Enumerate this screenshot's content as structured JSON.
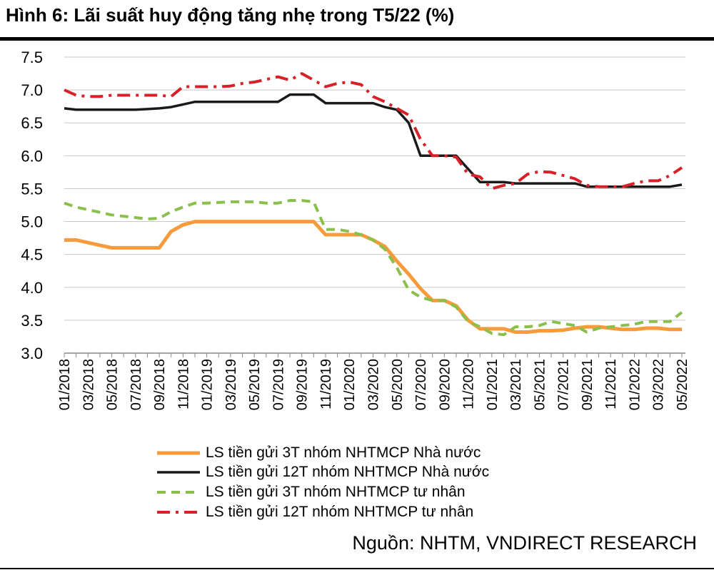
{
  "figure": {
    "title": "Hình 6: Lãi suất huy động tăng nhẹ trong T5/22 (%)",
    "source": "Nguồn: NHTM, VNDIRECT RESEARCH"
  },
  "chart_data": {
    "type": "line",
    "title": "Hình 6: Lãi suất huy động tăng nhẹ trong T5/22 (%)",
    "xlabel": "",
    "ylabel": "",
    "ylim": [
      3.0,
      7.5
    ],
    "yticks": [
      "3.0",
      "3.5",
      "4.0",
      "4.5",
      "5.0",
      "5.5",
      "6.0",
      "6.5",
      "7.0",
      "7.5"
    ],
    "grid": "horizontal",
    "legend_position": "bottom",
    "x": [
      "01/2018",
      "02/2018",
      "03/2018",
      "04/2018",
      "05/2018",
      "06/2018",
      "07/2018",
      "08/2018",
      "09/2018",
      "10/2018",
      "11/2018",
      "12/2018",
      "01/2019",
      "02/2019",
      "03/2019",
      "04/2019",
      "05/2019",
      "06/2019",
      "07/2019",
      "08/2019",
      "09/2019",
      "10/2019",
      "11/2019",
      "12/2019",
      "01/2020",
      "02/2020",
      "03/2020",
      "04/2020",
      "05/2020",
      "06/2020",
      "07/2020",
      "08/2020",
      "09/2020",
      "10/2020",
      "11/2020",
      "12/2020",
      "01/2021",
      "02/2021",
      "03/2021",
      "04/2021",
      "05/2021",
      "06/2021",
      "07/2021",
      "08/2021",
      "09/2021",
      "10/2021",
      "11/2021",
      "12/2021",
      "01/2022",
      "02/2022",
      "03/2022",
      "04/2022",
      "05/2022"
    ],
    "x_tick_labels": [
      "01/2018",
      "03/2018",
      "05/2018",
      "07/2018",
      "09/2018",
      "11/2018",
      "01/2019",
      "03/2019",
      "05/2019",
      "07/2019",
      "09/2019",
      "11/2019",
      "01/2020",
      "03/2020",
      "05/2020",
      "07/2020",
      "09/2020",
      "11/2020",
      "01/2021",
      "03/2021",
      "05/2021",
      "07/2021",
      "09/2021",
      "11/2021",
      "01/2022",
      "03/2022",
      "05/2022"
    ],
    "series": [
      {
        "name": "LS tiền gửi 3T nhóm NHTMCP Nhà nước",
        "color": "#F59B3B",
        "style": "solid",
        "values": [
          4.72,
          4.72,
          4.68,
          4.64,
          4.6,
          4.6,
          4.6,
          4.6,
          4.6,
          4.85,
          4.95,
          5.0,
          5.0,
          5.0,
          5.0,
          5.0,
          5.0,
          5.0,
          5.0,
          5.0,
          5.0,
          5.0,
          4.8,
          4.8,
          4.8,
          4.8,
          4.72,
          4.62,
          4.4,
          4.2,
          3.98,
          3.8,
          3.8,
          3.72,
          3.5,
          3.37,
          3.37,
          3.37,
          3.32,
          3.32,
          3.34,
          3.34,
          3.35,
          3.38,
          3.4,
          3.4,
          3.38,
          3.36,
          3.36,
          3.38,
          3.38,
          3.36,
          3.36
        ]
      },
      {
        "name": "LS tiền gửi 12T nhóm NHTMCP Nhà nước",
        "color": "#1A1A1A",
        "style": "solid",
        "values": [
          6.72,
          6.7,
          6.7,
          6.7,
          6.7,
          6.7,
          6.7,
          6.71,
          6.72,
          6.74,
          6.78,
          6.82,
          6.82,
          6.82,
          6.82,
          6.82,
          6.82,
          6.82,
          6.82,
          6.93,
          6.93,
          6.93,
          6.8,
          6.8,
          6.8,
          6.8,
          6.8,
          6.74,
          6.7,
          6.5,
          6.0,
          6.0,
          6.0,
          6.0,
          5.8,
          5.6,
          5.6,
          5.6,
          5.58,
          5.58,
          5.58,
          5.58,
          5.58,
          5.58,
          5.53,
          5.53,
          5.53,
          5.53,
          5.53,
          5.53,
          5.53,
          5.53,
          5.56
        ]
      },
      {
        "name": "LS tiền gửi 3T nhóm NHTMCP tư nhân",
        "color": "#8BBF4C",
        "style": "dashed",
        "values": [
          5.28,
          5.22,
          5.18,
          5.14,
          5.1,
          5.08,
          5.06,
          5.04,
          5.05,
          5.15,
          5.22,
          5.28,
          5.28,
          5.29,
          5.3,
          5.3,
          5.3,
          5.28,
          5.28,
          5.32,
          5.32,
          5.3,
          4.88,
          4.88,
          4.85,
          4.8,
          4.72,
          4.58,
          4.3,
          3.96,
          3.85,
          3.8,
          3.8,
          3.7,
          3.48,
          3.4,
          3.3,
          3.28,
          3.4,
          3.4,
          3.42,
          3.48,
          3.45,
          3.42,
          3.32,
          3.38,
          3.4,
          3.42,
          3.44,
          3.48,
          3.48,
          3.48,
          3.62
        ]
      },
      {
        "name": "LS tiền gửi 12T nhóm NHTMCP tư nhân",
        "color": "#D72027",
        "style": "dashdot",
        "values": [
          7.0,
          6.92,
          6.9,
          6.9,
          6.92,
          6.92,
          6.92,
          6.92,
          6.92,
          6.9,
          7.05,
          7.05,
          7.05,
          7.05,
          7.06,
          7.1,
          7.12,
          7.16,
          7.2,
          7.15,
          7.25,
          7.15,
          7.05,
          7.1,
          7.12,
          7.08,
          6.9,
          6.82,
          6.72,
          6.62,
          6.25,
          6.0,
          6.0,
          5.98,
          5.72,
          5.68,
          5.5,
          5.55,
          5.58,
          5.72,
          5.76,
          5.75,
          5.7,
          5.65,
          5.55,
          5.53,
          5.53,
          5.53,
          5.58,
          5.62,
          5.62,
          5.7,
          5.82
        ]
      }
    ]
  }
}
